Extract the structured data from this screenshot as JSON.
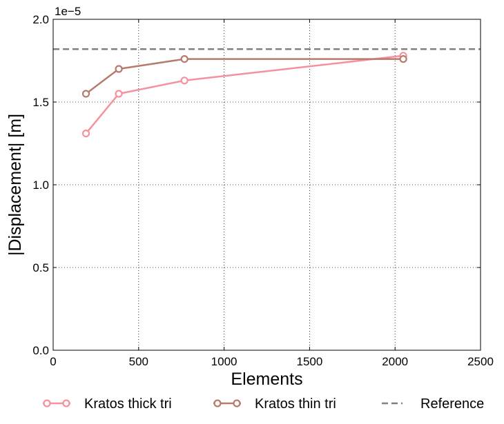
{
  "chart_data": {
    "type": "line",
    "xlabel": "Elements",
    "ylabel": "|Displacement| [m]",
    "y_offset_label": "1e−5",
    "xlim": [
      0,
      2500
    ],
    "ylim": [
      0.0,
      2.0
    ],
    "y_scale_factor": 1e-05,
    "xticks": [
      0,
      500,
      1000,
      1500,
      2000,
      2500
    ],
    "xtick_labels": [
      "0",
      "500",
      "1000",
      "1500",
      "2000",
      "2500"
    ],
    "yticks": [
      0.0,
      0.5,
      1.0,
      1.5,
      2.0
    ],
    "ytick_labels": [
      "0.0",
      "0.5",
      "1.0",
      "1.5",
      "2.0"
    ],
    "grid": true,
    "legend_position": "bottom",
    "series": [
      {
        "name": "Kratos thick tri",
        "color": "#f7909e",
        "marker": "open-circle",
        "x": [
          192,
          384,
          768,
          2048
        ],
        "y": [
          1.31,
          1.55,
          1.63,
          1.78
        ]
      },
      {
        "name": "Kratos thin tri",
        "color": "#b87a6c",
        "marker": "open-circle",
        "x": [
          192,
          384,
          768,
          2048
        ],
        "y": [
          1.55,
          1.7,
          1.76,
          1.76
        ]
      }
    ],
    "reference": {
      "name": "Reference",
      "color": "#808080",
      "style": "dashed",
      "y": 1.82
    }
  }
}
